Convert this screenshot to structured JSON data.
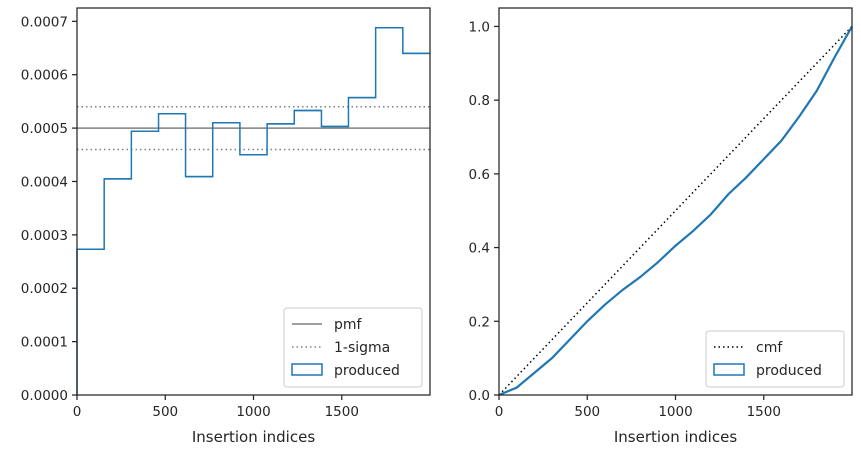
{
  "colors": {
    "produced": "#1f77b4",
    "reference": "#808080",
    "cmf": "#000000",
    "axes": "#262626"
  },
  "chart_data": [
    {
      "type": "step",
      "xlabel": "Insertion indices",
      "ylabel": "",
      "xlim": [
        0,
        2000
      ],
      "ylim": [
        0,
        0.000725
      ],
      "x_ticks": [
        0,
        500,
        1000,
        1500
      ],
      "x_tick_labels": [
        "0",
        "500",
        "1000",
        "1500"
      ],
      "y_ticks": [
        0,
        0.0001,
        0.0002,
        0.0003,
        0.0004,
        0.0005,
        0.0006,
        0.0007
      ],
      "y_tick_labels": [
        "0.0000",
        "0.0001",
        "0.0002",
        "0.0003",
        "0.0004",
        "0.0005",
        "0.0006",
        "0.0007"
      ],
      "legend_position": "lower right",
      "legend": [
        "pmf",
        "1-sigma",
        "produced"
      ],
      "pmf": 0.0005,
      "sigma_band": [
        0.00046,
        0.00054
      ],
      "bin_edges": [
        0,
        154,
        308,
        462,
        615,
        769,
        923,
        1077,
        1231,
        1385,
        1538,
        1692,
        1846,
        2000
      ],
      "produced": [
        0.000273,
        0.000405,
        0.000494,
        0.000527,
        0.000409,
        0.00051,
        0.00045,
        0.000508,
        0.000533,
        0.000503,
        0.000557,
        0.000688,
        0.00064
      ]
    },
    {
      "type": "line",
      "xlabel": "Insertion indices",
      "ylabel": "",
      "xlim": [
        0,
        2000
      ],
      "ylim": [
        0,
        1.05
      ],
      "x_ticks": [
        0,
        500,
        1000,
        1500
      ],
      "x_tick_labels": [
        "0",
        "500",
        "1000",
        "1500"
      ],
      "y_ticks": [
        0,
        0.2,
        0.4,
        0.6,
        0.8,
        1.0
      ],
      "y_tick_labels": [
        "0.0",
        "0.2",
        "0.4",
        "0.6",
        "0.8",
        "1.0"
      ],
      "legend_position": "lower right",
      "legend": [
        "cmf",
        "produced"
      ],
      "cmf": {
        "x": [
          0,
          2000
        ],
        "y": [
          0,
          1
        ]
      },
      "produced": {
        "x": [
          0,
          100,
          200,
          300,
          400,
          500,
          600,
          700,
          800,
          900,
          1000,
          1100,
          1200,
          1300,
          1400,
          1500,
          1600,
          1700,
          1800,
          1900,
          2000
        ],
        "y": [
          0,
          0.02,
          0.06,
          0.1,
          0.15,
          0.2,
          0.245,
          0.285,
          0.32,
          0.36,
          0.405,
          0.445,
          0.49,
          0.545,
          0.59,
          0.64,
          0.69,
          0.755,
          0.825,
          0.915,
          1.0
        ]
      }
    }
  ]
}
